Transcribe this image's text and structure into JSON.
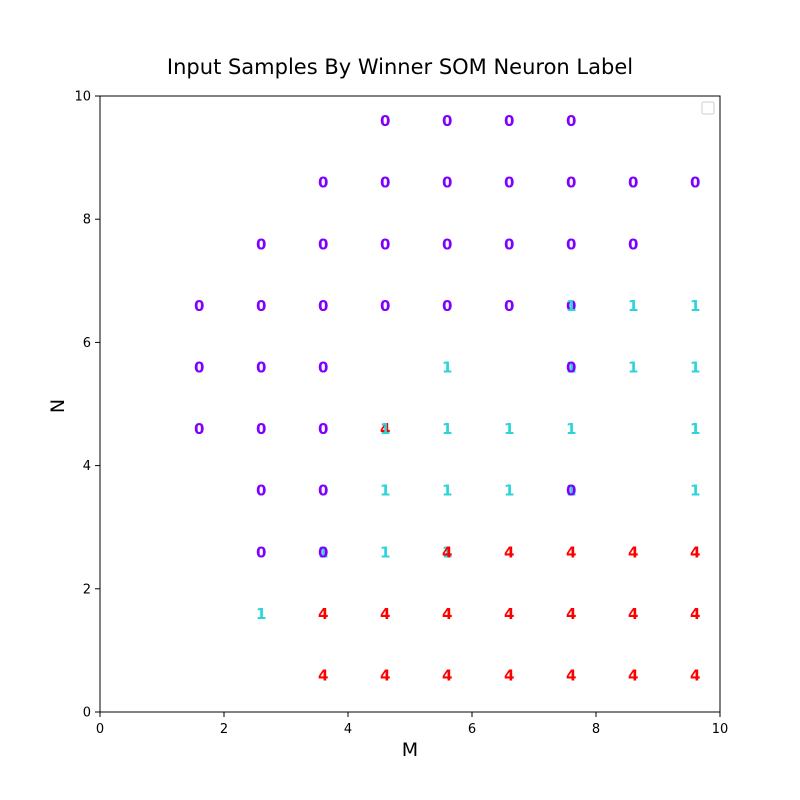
{
  "chart_data": {
    "type": "scatter",
    "title": "Input Samples By Winner SOM Neuron Label",
    "xlabel": "M",
    "ylabel": "N",
    "xlim": [
      0,
      10
    ],
    "ylim": [
      0,
      10
    ],
    "xticks": [
      0,
      2,
      4,
      6,
      8,
      10
    ],
    "yticks": [
      0,
      2,
      4,
      6,
      8,
      10
    ],
    "grid": false,
    "legend": {
      "position": "top-right",
      "entries": []
    },
    "colors": {
      "0": "#7f00ff",
      "1": "#2ad4d9",
      "4": "#ff0000"
    },
    "points": [
      {
        "x": 4.6,
        "y": 9.6,
        "label": "0"
      },
      {
        "x": 5.6,
        "y": 9.6,
        "label": "0"
      },
      {
        "x": 6.6,
        "y": 9.6,
        "label": "0"
      },
      {
        "x": 7.6,
        "y": 9.6,
        "label": "0"
      },
      {
        "x": 3.6,
        "y": 8.6,
        "label": "0"
      },
      {
        "x": 4.6,
        "y": 8.6,
        "label": "0"
      },
      {
        "x": 5.6,
        "y": 8.6,
        "label": "0"
      },
      {
        "x": 6.6,
        "y": 8.6,
        "label": "0"
      },
      {
        "x": 7.6,
        "y": 8.6,
        "label": "0"
      },
      {
        "x": 8.6,
        "y": 8.6,
        "label": "0"
      },
      {
        "x": 9.6,
        "y": 8.6,
        "label": "0"
      },
      {
        "x": 2.6,
        "y": 7.6,
        "label": "0"
      },
      {
        "x": 3.6,
        "y": 7.6,
        "label": "0"
      },
      {
        "x": 4.6,
        "y": 7.6,
        "label": "0"
      },
      {
        "x": 5.6,
        "y": 7.6,
        "label": "0"
      },
      {
        "x": 6.6,
        "y": 7.6,
        "label": "0"
      },
      {
        "x": 7.6,
        "y": 7.6,
        "label": "0"
      },
      {
        "x": 8.6,
        "y": 7.6,
        "label": "0"
      },
      {
        "x": 1.6,
        "y": 6.6,
        "label": "0"
      },
      {
        "x": 2.6,
        "y": 6.6,
        "label": "0"
      },
      {
        "x": 3.6,
        "y": 6.6,
        "label": "0"
      },
      {
        "x": 4.6,
        "y": 6.6,
        "label": "0"
      },
      {
        "x": 5.6,
        "y": 6.6,
        "label": "0"
      },
      {
        "x": 6.6,
        "y": 6.6,
        "label": "0"
      },
      {
        "x": 7.6,
        "y": 6.6,
        "label": "0"
      },
      {
        "x": 7.6,
        "y": 6.6,
        "label": "1"
      },
      {
        "x": 8.6,
        "y": 6.6,
        "label": "1"
      },
      {
        "x": 9.6,
        "y": 6.6,
        "label": "1"
      },
      {
        "x": 1.6,
        "y": 5.6,
        "label": "0"
      },
      {
        "x": 2.6,
        "y": 5.6,
        "label": "0"
      },
      {
        "x": 3.6,
        "y": 5.6,
        "label": "0"
      },
      {
        "x": 5.6,
        "y": 5.6,
        "label": "1"
      },
      {
        "x": 7.6,
        "y": 5.6,
        "label": "1"
      },
      {
        "x": 7.6,
        "y": 5.6,
        "label": "0"
      },
      {
        "x": 8.6,
        "y": 5.6,
        "label": "1"
      },
      {
        "x": 9.6,
        "y": 5.6,
        "label": "1"
      },
      {
        "x": 1.6,
        "y": 4.6,
        "label": "0"
      },
      {
        "x": 2.6,
        "y": 4.6,
        "label": "0"
      },
      {
        "x": 3.6,
        "y": 4.6,
        "label": "0"
      },
      {
        "x": 4.6,
        "y": 4.6,
        "label": "4"
      },
      {
        "x": 4.6,
        "y": 4.6,
        "label": "1"
      },
      {
        "x": 5.6,
        "y": 4.6,
        "label": "1"
      },
      {
        "x": 6.6,
        "y": 4.6,
        "label": "1"
      },
      {
        "x": 7.6,
        "y": 4.6,
        "label": "1"
      },
      {
        "x": 9.6,
        "y": 4.6,
        "label": "1"
      },
      {
        "x": 2.6,
        "y": 3.6,
        "label": "0"
      },
      {
        "x": 3.6,
        "y": 3.6,
        "label": "0"
      },
      {
        "x": 4.6,
        "y": 3.6,
        "label": "1"
      },
      {
        "x": 5.6,
        "y": 3.6,
        "label": "1"
      },
      {
        "x": 6.6,
        "y": 3.6,
        "label": "1"
      },
      {
        "x": 7.6,
        "y": 3.6,
        "label": "1"
      },
      {
        "x": 7.6,
        "y": 3.6,
        "label": "0"
      },
      {
        "x": 9.6,
        "y": 3.6,
        "label": "1"
      },
      {
        "x": 2.6,
        "y": 2.6,
        "label": "0"
      },
      {
        "x": 3.6,
        "y": 2.6,
        "label": "1"
      },
      {
        "x": 3.6,
        "y": 2.6,
        "label": "0"
      },
      {
        "x": 4.6,
        "y": 2.6,
        "label": "1"
      },
      {
        "x": 5.6,
        "y": 2.6,
        "label": "1"
      },
      {
        "x": 5.6,
        "y": 2.6,
        "label": "4"
      },
      {
        "x": 6.6,
        "y": 2.6,
        "label": "4"
      },
      {
        "x": 7.6,
        "y": 2.6,
        "label": "4"
      },
      {
        "x": 8.6,
        "y": 2.6,
        "label": "4"
      },
      {
        "x": 9.6,
        "y": 2.6,
        "label": "4"
      },
      {
        "x": 2.6,
        "y": 1.6,
        "label": "1"
      },
      {
        "x": 3.6,
        "y": 1.6,
        "label": "4"
      },
      {
        "x": 4.6,
        "y": 1.6,
        "label": "4"
      },
      {
        "x": 5.6,
        "y": 1.6,
        "label": "4"
      },
      {
        "x": 6.6,
        "y": 1.6,
        "label": "4"
      },
      {
        "x": 7.6,
        "y": 1.6,
        "label": "4"
      },
      {
        "x": 8.6,
        "y": 1.6,
        "label": "4"
      },
      {
        "x": 9.6,
        "y": 1.6,
        "label": "4"
      },
      {
        "x": 3.6,
        "y": 0.6,
        "label": "4"
      },
      {
        "x": 4.6,
        "y": 0.6,
        "label": "4"
      },
      {
        "x": 5.6,
        "y": 0.6,
        "label": "4"
      },
      {
        "x": 6.6,
        "y": 0.6,
        "label": "4"
      },
      {
        "x": 7.6,
        "y": 0.6,
        "label": "4"
      },
      {
        "x": 8.6,
        "y": 0.6,
        "label": "4"
      },
      {
        "x": 9.6,
        "y": 0.6,
        "label": "4"
      }
    ]
  }
}
